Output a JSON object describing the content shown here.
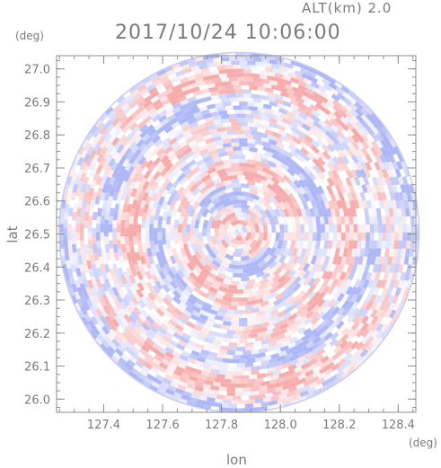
{
  "header": {
    "altitude_label": "ALT(km) 2.0",
    "title": "2017/10/24 10:06:00"
  },
  "chart_data": {
    "type": "heatmap",
    "title": "2017/10/24 10:06:00",
    "subtitle": "ALT(km) 2.0",
    "xlabel": "lon",
    "ylabel": "lat",
    "x_unit": "(deg)",
    "y_unit": "(deg)",
    "xlim": [
      127.24,
      128.46
    ],
    "ylim": [
      25.96,
      27.04
    ],
    "x_ticks": [
      "127.4",
      "127.6",
      "127.8",
      "128.0",
      "128.2",
      "128.4"
    ],
    "y_ticks": [
      "26.0",
      "26.1",
      "26.2",
      "26.3",
      "26.4",
      "26.5",
      "26.6",
      "26.7",
      "26.8",
      "26.9",
      "27.0"
    ],
    "center": {
      "lon": 127.86,
      "lat": 26.505
    },
    "radius_deg_lat": 0.545,
    "colors": {
      "positive": "#f7a8a8",
      "negative": "#aab4f5",
      "neutral": "#ffffff",
      "axis": "#8c8c8c",
      "text": "#7a7a7a"
    }
  }
}
